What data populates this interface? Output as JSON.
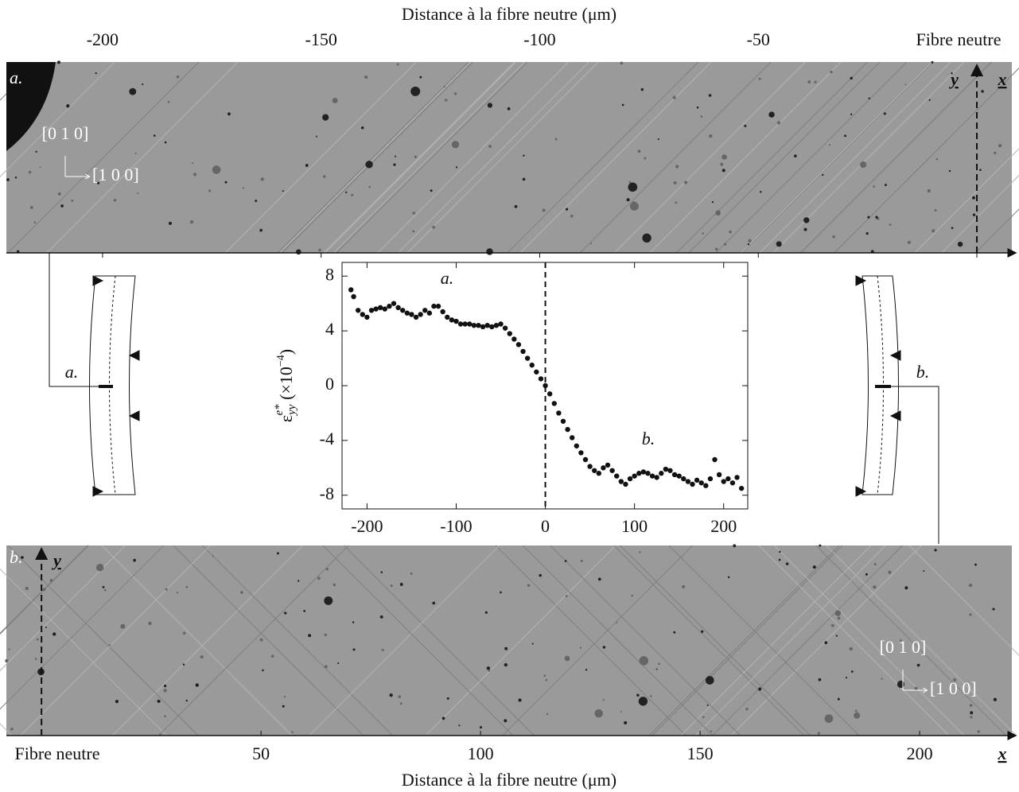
{
  "chart_data": [
    {
      "type": "micrograph",
      "panel_label": "a.",
      "x_label": "Distance à la fibre neutre (μm)",
      "xlim": [
        -222,
        8
      ],
      "xticks": [
        -200,
        -150,
        -100,
        -50,
        {
          "value": 0,
          "label": "Fibre neutre"
        }
      ],
      "reference_line_x": 0,
      "axis_names": [
        "y",
        "x"
      ],
      "crystal_directions": [
        "[0 1 0]",
        "[1 0 0]"
      ],
      "diagram_label": "a."
    },
    {
      "type": "scatter",
      "color": "#111111",
      "y_label_parts": [
        "ε",
        "yy",
        "e*",
        " (×10",
        "−4",
        ")"
      ],
      "annotations": [
        "a.",
        "b."
      ],
      "reference_line_x": 0,
      "xlim": [
        -228,
        227
      ],
      "xticks": [
        -200,
        -100,
        0,
        100,
        200
      ],
      "ylim": [
        -9,
        9
      ],
      "yticks": [
        -8,
        -4,
        0,
        4,
        8
      ],
      "x": [
        -218,
        -215,
        -210,
        -205,
        -200,
        -195,
        -190,
        -185,
        -180,
        -175,
        -170,
        -165,
        -160,
        -155,
        -150,
        -145,
        -140,
        -135,
        -130,
        -125,
        -120,
        -115,
        -110,
        -105,
        -100,
        -95,
        -90,
        -85,
        -80,
        -75,
        -70,
        -65,
        -60,
        -55,
        -50,
        -45,
        -40,
        -35,
        -30,
        -25,
        -20,
        -15,
        -10,
        -5,
        0,
        5,
        10,
        15,
        20,
        25,
        30,
        35,
        40,
        45,
        50,
        55,
        60,
        65,
        70,
        75,
        80,
        85,
        90,
        95,
        100,
        105,
        110,
        115,
        120,
        125,
        130,
        135,
        140,
        145,
        150,
        155,
        160,
        165,
        170,
        175,
        180,
        185,
        190,
        195,
        200,
        205,
        210,
        215,
        220
      ],
      "values": [
        7,
        6.5,
        5.5,
        5.2,
        5.0,
        5.5,
        5.6,
        5.7,
        5.6,
        5.8,
        6.0,
        5.7,
        5.5,
        5.3,
        5.2,
        5.0,
        5.2,
        5.5,
        5.3,
        5.8,
        5.8,
        5.4,
        5.0,
        4.8,
        4.7,
        4.5,
        4.5,
        4.5,
        4.4,
        4.4,
        4.3,
        4.4,
        4.3,
        4.4,
        4.5,
        4.2,
        3.8,
        3.4,
        3.0,
        2.5,
        2.0,
        1.5,
        1.0,
        0.5,
        0,
        -0.6,
        -1.3,
        -2.0,
        -2.6,
        -3.2,
        -3.8,
        -4.4,
        -4.9,
        -5.4,
        -5.9,
        -6.2,
        -6.4,
        -6.0,
        -5.8,
        -6.2,
        -6.6,
        -7.0,
        -7.2,
        -6.8,
        -6.6,
        -6.4,
        -6.3,
        -6.4,
        -6.6,
        -6.7,
        -6.4,
        -6.1,
        -6.2,
        -6.5,
        -6.6,
        -6.8,
        -7.0,
        -7.2,
        -6.9,
        -7.1,
        -7.3,
        -6.8,
        -5.4,
        -6.5,
        -7.0,
        -6.8,
        -7.1,
        -6.7,
        -7.5
      ]
    },
    {
      "type": "micrograph",
      "panel_label": "b.",
      "x_label": "Distance à la fibre neutre (μm)",
      "xlim": [
        -8,
        221
      ],
      "xticks": [
        {
          "value": 0,
          "label": "Fibre neutre"
        },
        50,
        100,
        150,
        200
      ],
      "reference_line_x": 0,
      "axis_names": [
        "y",
        "x"
      ],
      "crystal_directions": [
        "[0 1 0]",
        "[1 0 0]"
      ],
      "diagram_label": "b."
    }
  ]
}
